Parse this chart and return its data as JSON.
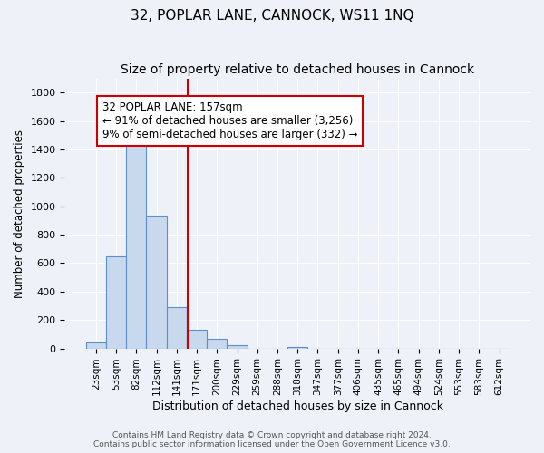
{
  "title": "32, POPLAR LANE, CANNOCK, WS11 1NQ",
  "subtitle": "Size of property relative to detached houses in Cannock",
  "xlabel": "Distribution of detached houses by size in Cannock",
  "ylabel": "Number of detached properties",
  "bin_labels": [
    "23sqm",
    "53sqm",
    "82sqm",
    "112sqm",
    "141sqm",
    "171sqm",
    "200sqm",
    "229sqm",
    "259sqm",
    "288sqm",
    "318sqm",
    "347sqm",
    "377sqm",
    "406sqm",
    "435sqm",
    "465sqm",
    "494sqm",
    "524sqm",
    "553sqm",
    "583sqm",
    "612sqm"
  ],
  "bar_heights": [
    40,
    650,
    1470,
    935,
    290,
    130,
    65,
    20,
    0,
    0,
    10,
    0,
    0,
    0,
    0,
    0,
    0,
    0,
    0,
    0,
    0
  ],
  "bar_color": "#c9d9ed",
  "bar_edge_color": "#5b8fc9",
  "background_color": "#eef2f8",
  "ylim": [
    0,
    1900
  ],
  "yticks": [
    0,
    200,
    400,
    600,
    800,
    1000,
    1200,
    1400,
    1600,
    1800
  ],
  "vline_x": 4.533,
  "vline_color": "#cc0000",
  "annotation_title": "32 POPLAR LANE: 157sqm",
  "annotation_line1": "← 91% of detached houses are smaller (3,256)",
  "annotation_line2": "9% of semi-detached houses are larger (332) →",
  "annotation_box_color": "#ffffff",
  "annotation_box_edge": "#cc0000",
  "footer1": "Contains HM Land Registry data © Crown copyright and database right 2024.",
  "footer2": "Contains public sector information licensed under the Open Government Licence v3.0.",
  "grid_color": "#ffffff",
  "title_fontsize": 11,
  "subtitle_fontsize": 10
}
